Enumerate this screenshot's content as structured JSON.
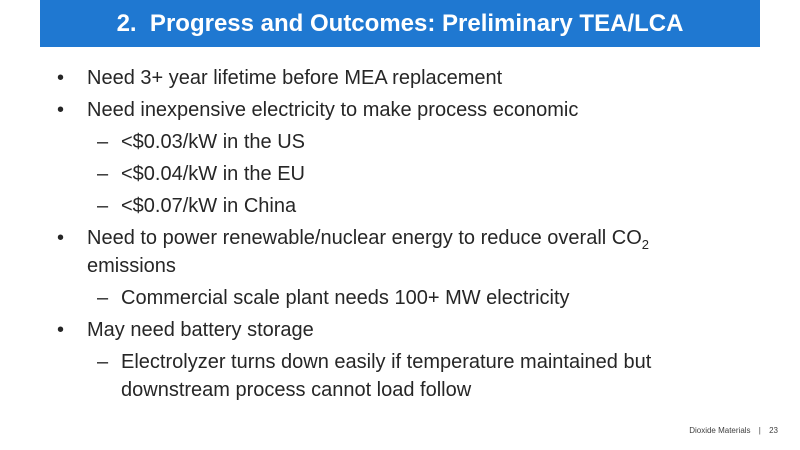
{
  "header": {
    "title": "2.  Progress and Outcomes: Preliminary TEA/LCA"
  },
  "bullets": [
    {
      "text": "Need 3+ year lifetime before MEA replacement"
    },
    {
      "text": "Need inexpensive electricity to make process economic",
      "sub": [
        "<$0.03/kW in the US",
        "<$0.04/kW in the EU",
        "<$0.07/kW in China"
      ]
    },
    {
      "text": "Need to power renewable/nuclear energy to reduce overall CO",
      "subscript": "2",
      "text_after": " emissions",
      "sub": [
        "Commercial scale plant needs 100+ MW electricity"
      ]
    },
    {
      "text": "May need battery storage",
      "sub": [
        "Electrolyzer turns down easily if temperature maintained but downstream process cannot load follow"
      ]
    }
  ],
  "footer": {
    "source": "Dioxide Materials",
    "separator": "|",
    "page": "23"
  }
}
